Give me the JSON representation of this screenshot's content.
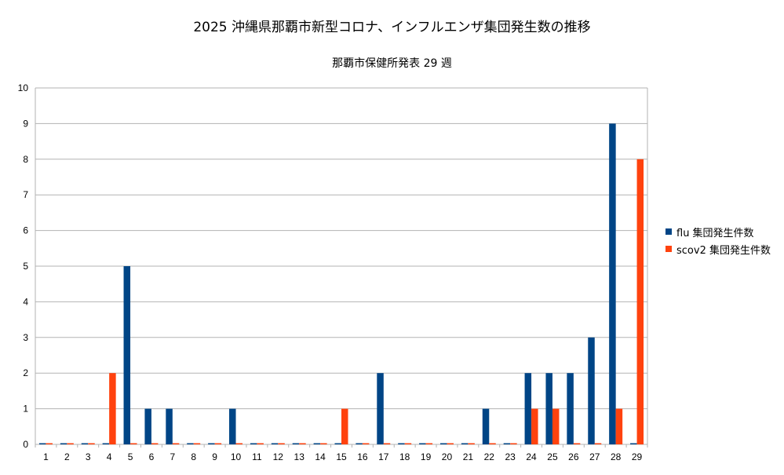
{
  "chart_data": {
    "type": "bar",
    "title": "2025  沖縄県那覇市新型コロナ、インフルエンザ集団発生数の推移",
    "subtitle": "那覇市保健所発表 29 週",
    "categories": [
      "1",
      "2",
      "3",
      "4",
      "5",
      "6",
      "7",
      "8",
      "9",
      "10",
      "11",
      "12",
      "13",
      "14",
      "15",
      "16",
      "17",
      "18",
      "19",
      "20",
      "21",
      "22",
      "23",
      "24",
      "25",
      "26",
      "27",
      "28",
      "29"
    ],
    "series": [
      {
        "name": "flu 集団発生件数",
        "color": "#004586",
        "values": [
          0,
          0,
          0,
          0,
          5,
          1,
          1,
          0,
          0,
          1,
          0,
          0,
          0,
          0,
          0,
          0,
          2,
          0,
          0,
          0,
          0,
          1,
          0,
          2,
          2,
          2,
          3,
          9,
          0
        ]
      },
      {
        "name": "scov2 集団発生件数",
        "color": "#ff420e",
        "values": [
          0,
          0,
          0,
          2,
          0,
          0,
          0,
          0,
          0,
          0,
          0,
          0,
          0,
          0,
          1,
          0,
          0,
          0,
          0,
          0,
          0,
          0,
          0,
          1,
          1,
          0,
          0,
          1,
          8
        ]
      }
    ],
    "yticks": [
      "0",
      "1",
      "2",
      "3",
      "4",
      "5",
      "6",
      "7",
      "8",
      "9",
      "10"
    ],
    "ylim": [
      0,
      10
    ],
    "xlabel": "",
    "ylabel": "",
    "grid": true,
    "legend_position": "right"
  }
}
